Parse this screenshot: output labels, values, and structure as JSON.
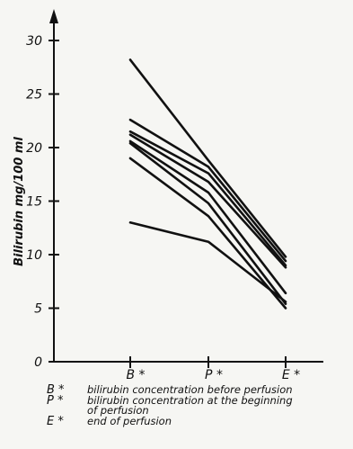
{
  "chart_data": {
    "type": "line",
    "ylabel": "Bilirubin mg/100 ml",
    "xlabel": "",
    "categories": [
      "B *",
      "P *",
      "E *"
    ],
    "ylim": [
      0,
      30
    ],
    "yticks": [
      0,
      5,
      10,
      15,
      20,
      25,
      30
    ],
    "ytick_labels": [
      "0",
      "5",
      "10",
      "15",
      "20",
      "25",
      "30"
    ],
    "series": [
      {
        "values": [
          28.2,
          18.8,
          9.8
        ]
      },
      {
        "values": [
          22.6,
          18.2,
          9.4
        ]
      },
      {
        "values": [
          21.5,
          17.6,
          9.0
        ]
      },
      {
        "values": [
          21.2,
          16.8,
          8.8
        ]
      },
      {
        "values": [
          20.6,
          15.8,
          6.4
        ]
      },
      {
        "values": [
          20.4,
          14.8,
          5.4
        ]
      },
      {
        "values": [
          19.0,
          13.6,
          5.0
        ]
      },
      {
        "values": [
          13.0,
          11.2,
          5.6
        ]
      }
    ],
    "grid": false
  },
  "legend": [
    {
      "key": "B *",
      "text": "bilirubin concentration before perfusion",
      "text_cont": ""
    },
    {
      "key": "P *",
      "text": "bilirubin concentration at the beginning",
      "text_cont": "of perfusion"
    },
    {
      "key": "E *",
      "text": "end of perfusion",
      "text_cont": ""
    }
  ],
  "colors": {
    "ink": "#111111",
    "paper": "#f6f6f3"
  }
}
